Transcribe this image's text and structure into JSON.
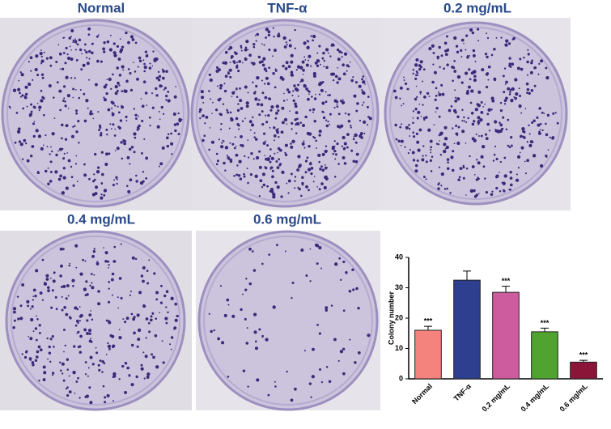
{
  "photo_labels": [
    "Normal",
    "TNF-α",
    "0.2 mg/mL",
    "0.4 mg/mL",
    "0.6 mg/mL"
  ],
  "chart_data": {
    "type": "bar",
    "y_label": "Colony number",
    "categories": [
      "Normal",
      "TNF-α",
      "0.2 mg/mL",
      "0.4 mg/mL",
      "0.6 mg/mL"
    ],
    "values": [
      16,
      32.5,
      28.5,
      15.5,
      5.5
    ],
    "errors": [
      1.3,
      3,
      2,
      1.2,
      0.6
    ],
    "value_labels": [
      "***",
      null,
      "***",
      "***",
      "***"
    ],
    "colors": [
      "#f4837d",
      "#2e3f8f",
      "#cc5c9e",
      "#4fa32e",
      "#8b1538"
    ],
    "ylim": [
      0,
      40
    ],
    "yticks": [
      0,
      10,
      20,
      30,
      40
    ]
  }
}
